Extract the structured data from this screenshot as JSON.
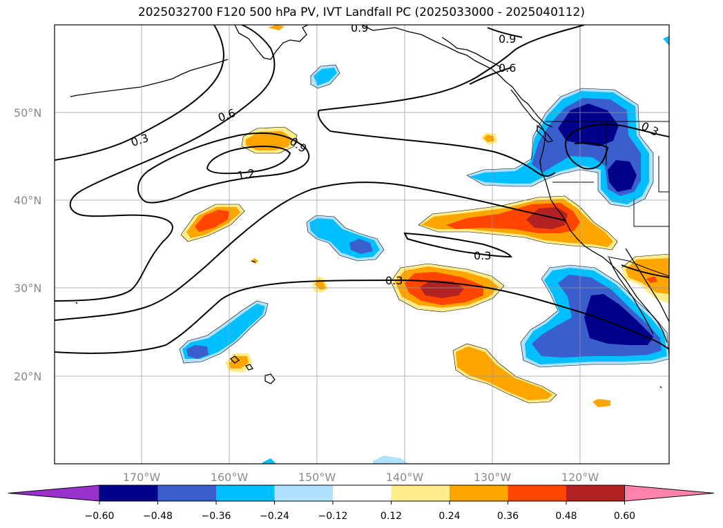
{
  "title": "2025032700 F120 500 hPa PV, IVT Landfall PC (2025033000 - 2025040112)",
  "lat_labels": [
    "50°N",
    "40°N",
    "30°N",
    "20°N"
  ],
  "lon_labels": [
    "170°W",
    "160°W",
    "150°W",
    "140°W",
    "130°W",
    "120°W"
  ],
  "contour_labels": [
    "0.9",
    "0.9",
    "0.6",
    "0.6",
    "0.3",
    "0.9",
    "1.2",
    "0.3",
    "0.3",
    "0.3"
  ],
  "colorbar": {
    "tick_labels": [
      "−0.60",
      "−0.48",
      "−0.36",
      "−0.24",
      "−0.12",
      "0.12",
      "0.24",
      "0.36",
      "0.48",
      "0.60"
    ],
    "colors": [
      "#9932cc",
      "#00008b",
      "#3a5fcd",
      "#00bfff",
      "#b0e2ff",
      "#ffffff",
      "#ffec8b",
      "#ffa500",
      "#ff4500",
      "#b22222",
      "#ff82ab"
    ]
  },
  "map_data": {
    "projection": "PlateCarree",
    "extent_lon": [
      -180,
      -110
    ],
    "extent_lat": [
      10,
      60
    ],
    "gridlines": true,
    "contour_levels_pv": [
      0.3,
      0.6,
      0.9,
      1.2
    ],
    "fill_levels_pc": [
      -0.6,
      -0.48,
      -0.36,
      -0.24,
      -0.12,
      0.12,
      0.24,
      0.36,
      0.48,
      0.6
    ]
  }
}
